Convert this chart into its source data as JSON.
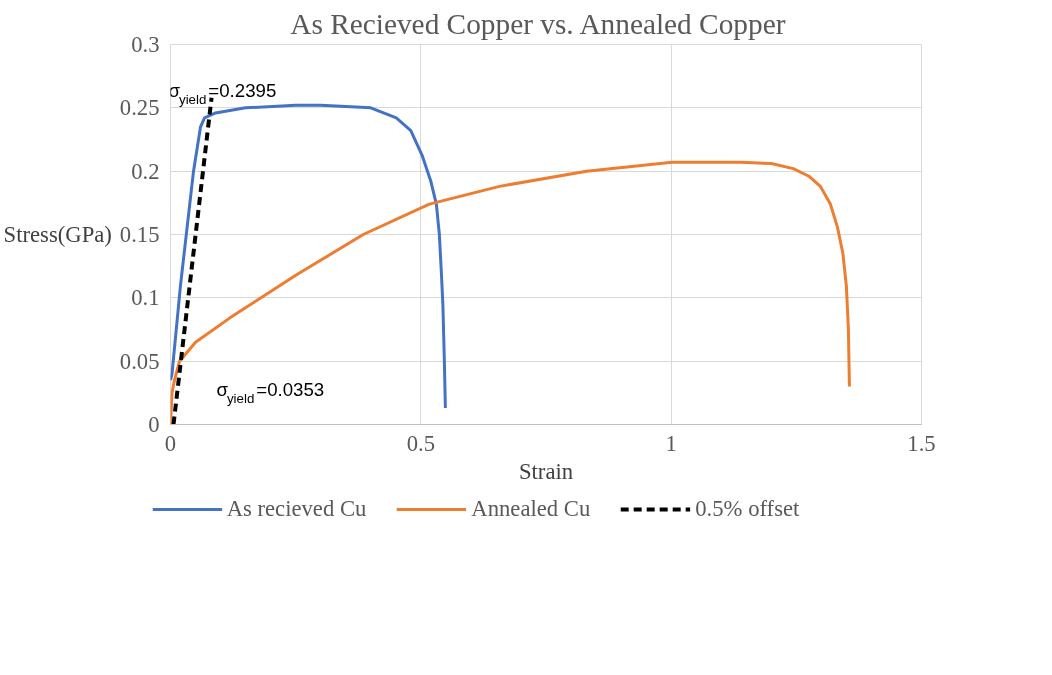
{
  "chart_data": {
    "type": "line",
    "title": "As Recieved  Copper vs. Annealed  Copper",
    "xlabel": "Strain",
    "ylabel": "Stress(GPa)",
    "xlim": [
      0,
      1.5
    ],
    "xticks": [
      0,
      0.5,
      1,
      1.5
    ],
    "ylim": [
      0,
      0.3
    ],
    "yticks": [
      0,
      0.05,
      0.1,
      0.15,
      0.2,
      0.25,
      0.3
    ],
    "grid": true,
    "legend": "bottom",
    "marker": "none",
    "series": [
      {
        "name": "As recieved Cu",
        "color": "#4472c4",
        "line_style": "solid",
        "x": [
          0,
          0.003,
          0.02,
          0.046,
          0.06,
          0.068,
          0.09,
          0.15,
          0.25,
          0.3,
          0.4,
          0.451,
          0.48,
          0.503,
          0.52,
          0.531,
          0.537,
          0.541,
          0.544,
          0.547,
          0.549
        ],
        "values": [
          0.035,
          0.04,
          0.11,
          0.2,
          0.235,
          0.242,
          0.246,
          0.25,
          0.252,
          0.252,
          0.25,
          0.242,
          0.232,
          0.212,
          0.192,
          0.174,
          0.15,
          0.12,
          0.095,
          0.05,
          0.013
        ]
      },
      {
        "name": "Annealed Cu",
        "color": "#ed7d31",
        "line_style": "solid",
        "x": [
          0,
          0.003,
          0.008,
          0.018,
          0.05,
          0.118,
          0.251,
          0.385,
          0.517,
          0.657,
          0.831,
          1.002,
          1.14,
          1.2,
          1.244,
          1.275,
          1.298,
          1.318,
          1.332,
          1.343,
          1.35,
          1.354,
          1.356
        ],
        "values": [
          0,
          0.025,
          0.035,
          0.05,
          0.065,
          0.084,
          0.118,
          0.15,
          0.174,
          0.188,
          0.2,
          0.207,
          0.207,
          0.206,
          0.202,
          0.196,
          0.188,
          0.174,
          0.156,
          0.135,
          0.109,
          0.075,
          0.03
        ]
      },
      {
        "name": "0.5% offset",
        "color": "#000000",
        "line_style": "dashed",
        "x": [
          0.006,
          0.082
        ],
        "values": [
          0,
          0.258
        ]
      }
    ],
    "annotations": [
      {
        "text": "σ$_{yield}$=0.2395",
        "x": 0.068,
        "y": 0.2395
      },
      "σ$_{yield}$=0.0353"
    ]
  }
}
